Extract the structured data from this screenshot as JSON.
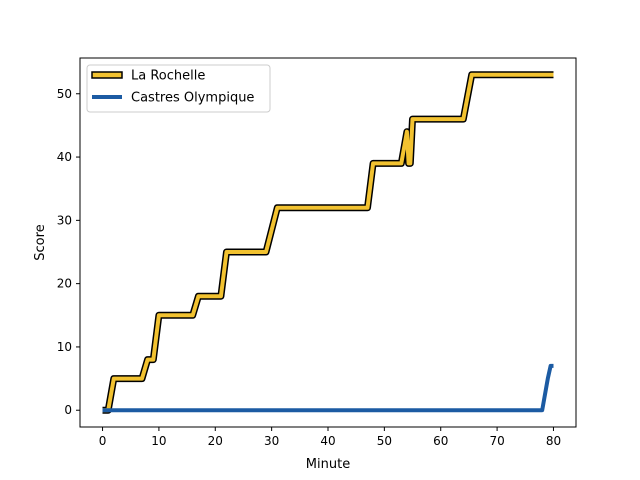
{
  "chart_data": {
    "type": "line",
    "xlabel": "Minute",
    "ylabel": "Score",
    "xlim": [
      -4,
      84
    ],
    "ylim": [
      -2.65,
      55.65
    ],
    "xticks": [
      0,
      10,
      20,
      30,
      40,
      50,
      60,
      70,
      80
    ],
    "yticks": [
      0,
      10,
      20,
      30,
      40,
      50
    ],
    "grid": false,
    "legend_position": "top-left",
    "series": [
      {
        "name": "La Rochelle",
        "color": "#f2c230",
        "edge_color": "#000000",
        "points": [
          [
            0,
            0
          ],
          [
            1,
            0
          ],
          [
            2,
            5
          ],
          [
            7,
            5
          ],
          [
            8,
            8
          ],
          [
            9,
            8
          ],
          [
            10,
            15
          ],
          [
            16,
            15
          ],
          [
            17,
            18
          ],
          [
            21,
            18
          ],
          [
            22,
            25
          ],
          [
            29,
            25
          ],
          [
            31,
            32
          ],
          [
            47,
            32
          ],
          [
            48,
            39
          ],
          [
            53,
            39
          ],
          [
            54,
            44
          ],
          [
            54.3,
            39
          ],
          [
            54.6,
            39
          ],
          [
            55,
            46
          ],
          [
            64,
            46
          ],
          [
            65.5,
            53
          ],
          [
            80,
            53
          ]
        ]
      },
      {
        "name": "Castres Olympique",
        "color": "#1c5ba3",
        "points": [
          [
            0,
            0
          ],
          [
            78,
            0
          ],
          [
            79,
            5
          ],
          [
            79.5,
            7
          ],
          [
            80,
            7
          ]
        ]
      }
    ]
  }
}
